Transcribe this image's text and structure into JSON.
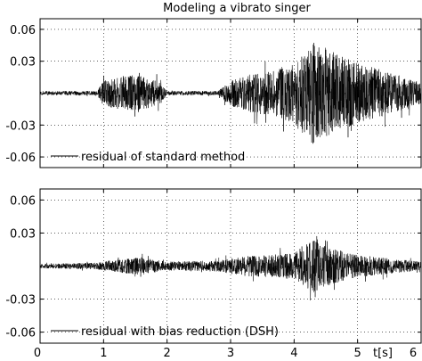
{
  "chart_data": [
    {
      "type": "line",
      "title": "Modeling a vibrato singer",
      "xlabel": "",
      "ylabel": "",
      "xlim": [
        0,
        6
      ],
      "ylim": [
        -0.07,
        0.07
      ],
      "yticks": [
        0.06,
        0.03,
        -0.03,
        -0.06
      ],
      "ytick_labels": [
        "0.06",
        "0.03",
        "-0.03",
        "-0.06"
      ],
      "grid": true,
      "legend_position": "bottom-left",
      "series": [
        {
          "name": "residual of standard method",
          "envelope": [
            {
              "t": 0.0,
              "amp": 0.002
            },
            {
              "t": 0.9,
              "amp": 0.002
            },
            {
              "t": 1.0,
              "amp": 0.012
            },
            {
              "t": 1.3,
              "amp": 0.016
            },
            {
              "t": 1.5,
              "amp": 0.018
            },
            {
              "t": 1.7,
              "amp": 0.014
            },
            {
              "t": 1.9,
              "amp": 0.01
            },
            {
              "t": 2.0,
              "amp": 0.002
            },
            {
              "t": 2.8,
              "amp": 0.002
            },
            {
              "t": 3.0,
              "amp": 0.012
            },
            {
              "t": 3.3,
              "amp": 0.018
            },
            {
              "t": 3.7,
              "amp": 0.022
            },
            {
              "t": 4.0,
              "amp": 0.03
            },
            {
              "t": 4.3,
              "amp": 0.048
            },
            {
              "t": 4.6,
              "amp": 0.04
            },
            {
              "t": 5.0,
              "amp": 0.028
            },
            {
              "t": 5.5,
              "amp": 0.02
            },
            {
              "t": 6.0,
              "amp": 0.01
            }
          ]
        }
      ]
    },
    {
      "type": "line",
      "title": "",
      "xlabel": "t[s]",
      "ylabel": "",
      "xlim": [
        0,
        6
      ],
      "ylim": [
        -0.07,
        0.07
      ],
      "xticks": [
        0,
        1,
        2,
        3,
        4,
        5,
        6
      ],
      "xtick_labels": [
        "0",
        "1",
        "2",
        "3",
        "4",
        "5",
        "6"
      ],
      "yticks": [
        0.06,
        0.03,
        -0.03,
        -0.06
      ],
      "ytick_labels": [
        "0.06",
        "0.03",
        "-0.03",
        "-0.06"
      ],
      "grid": true,
      "legend_position": "bottom-left",
      "series": [
        {
          "name": "residual with bias reduction (DSH)",
          "envelope": [
            {
              "t": 0.0,
              "amp": 0.002
            },
            {
              "t": 0.9,
              "amp": 0.003
            },
            {
              "t": 1.2,
              "amp": 0.006
            },
            {
              "t": 1.6,
              "amp": 0.008
            },
            {
              "t": 2.0,
              "amp": 0.004
            },
            {
              "t": 2.8,
              "amp": 0.005
            },
            {
              "t": 3.2,
              "amp": 0.009
            },
            {
              "t": 3.6,
              "amp": 0.01
            },
            {
              "t": 4.0,
              "amp": 0.012
            },
            {
              "t": 4.3,
              "amp": 0.024
            },
            {
              "t": 4.6,
              "amp": 0.016
            },
            {
              "t": 5.0,
              "amp": 0.01
            },
            {
              "t": 5.5,
              "amp": 0.007
            },
            {
              "t": 6.0,
              "amp": 0.004
            }
          ]
        }
      ]
    }
  ]
}
